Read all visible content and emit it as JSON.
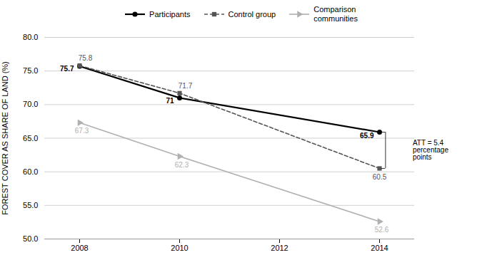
{
  "chart_data": {
    "type": "line",
    "x": [
      2008,
      2010,
      2014
    ],
    "series": [
      {
        "name": "Participants",
        "color": "#000000",
        "values": [
          75.7,
          71.0,
          65.9
        ],
        "marker": "circle",
        "line_style": "solid"
      },
      {
        "name": "Control group",
        "color": "#555555",
        "values": [
          75.8,
          71.7,
          60.5
        ],
        "marker": "square",
        "line_style": "dashed"
      },
      {
        "name": "Comparison\ncommunities",
        "color": "#b0b0b0",
        "values": [
          67.3,
          62.3,
          52.6
        ],
        "marker": "triangle-right",
        "line_style": "solid"
      }
    ],
    "ylabel": "FOREST COVER AS SHARE OF LAND (%)",
    "xlim": [
      2007.3,
      2014.7
    ],
    "xticks": [
      2008,
      2010,
      2012,
      2014
    ],
    "ylim": [
      50.0,
      80.0
    ],
    "yticks": [
      {
        "value": 50.0,
        "label": "50.0"
      },
      {
        "value": 55.0,
        "label": "55.0"
      },
      {
        "value": 60.0,
        "label": "60.0"
      },
      {
        "value": 65.0,
        "label": "65.0"
      },
      {
        "value": 70.0,
        "label": "70.0"
      },
      {
        "value": 75.0,
        "label": "75.0"
      },
      {
        "value": 80.0,
        "label": "80.0"
      }
    ],
    "grid": "y",
    "legend": "top",
    "data_labels": true,
    "annotations": [
      {
        "text": "ATT = 5.4\npercentage\npoints",
        "x": 2014,
        "y1": 65.9,
        "y2": 60.5
      }
    ]
  }
}
